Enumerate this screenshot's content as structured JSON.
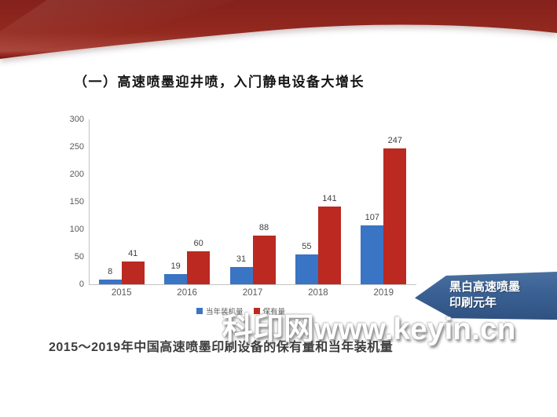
{
  "slide": {
    "title": "（一）高速喷墨迎井喷，入门静电设备大增长",
    "watermark": "科印网www.keyin.cn",
    "callout": {
      "line1": "黑白高速喷墨",
      "line2": "印刷元年"
    }
  },
  "colors": {
    "ribbon_red_dark": "#7c1a16",
    "ribbon_red_mid": "#95271f",
    "ribbon_red_light": "#b14a3f",
    "series_blue": "#3a74c4",
    "series_red": "#bb2921",
    "callout_blue": "#3a6093",
    "axis_gray": "#c3c3c3",
    "tick_text": "#595959"
  },
  "chart_data": {
    "type": "bar",
    "title": "2015～2019年中国高速喷墨印刷设备的保有量和当年装机量",
    "categories": [
      "2015",
      "2016",
      "2017",
      "2018",
      "2019"
    ],
    "series": [
      {
        "name": "当年装机量",
        "color": "#3a74c4",
        "values": [
          8,
          19,
          31,
          55,
          107
        ]
      },
      {
        "name": "保有量",
        "color": "#bb2921",
        "values": [
          41,
          60,
          88,
          141,
          247
        ]
      }
    ],
    "xlabel": "",
    "ylabel": "",
    "ylim": [
      0,
      300
    ],
    "yticks": [
      0,
      50,
      100,
      150,
      200,
      250,
      300
    ],
    "grid": false,
    "legend_position": "bottom",
    "bar_value_labels": true
  }
}
